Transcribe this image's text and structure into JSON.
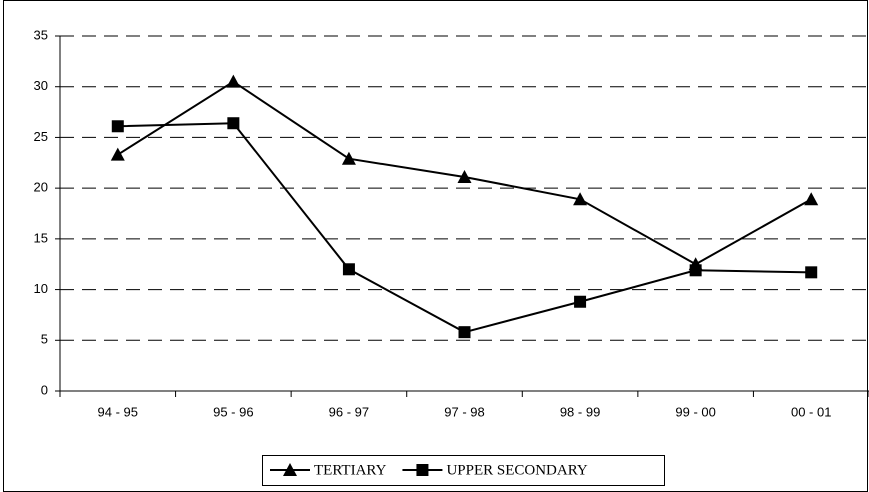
{
  "chart_data": {
    "type": "line",
    "categories": [
      "94 - 95",
      "95 - 96",
      "96 - 97",
      "97 - 98",
      "98 - 99",
      "99 - 00",
      "00 - 01"
    ],
    "series": [
      {
        "name": "TERTIARY",
        "color": "#000000",
        "marker": "triangle",
        "values": [
          23.3,
          30.5,
          22.9,
          21.1,
          18.9,
          12.5,
          18.9
        ]
      },
      {
        "name": "UPPER SECONDARY",
        "color": "#000000",
        "marker": "square",
        "values": [
          26.1,
          26.4,
          12.0,
          5.8,
          8.8,
          11.9,
          11.7
        ]
      }
    ],
    "ylim": [
      0,
      35
    ],
    "yticks": [
      0,
      5,
      10,
      15,
      20,
      25,
      30,
      35
    ],
    "grid": true,
    "legend": "bottom"
  }
}
